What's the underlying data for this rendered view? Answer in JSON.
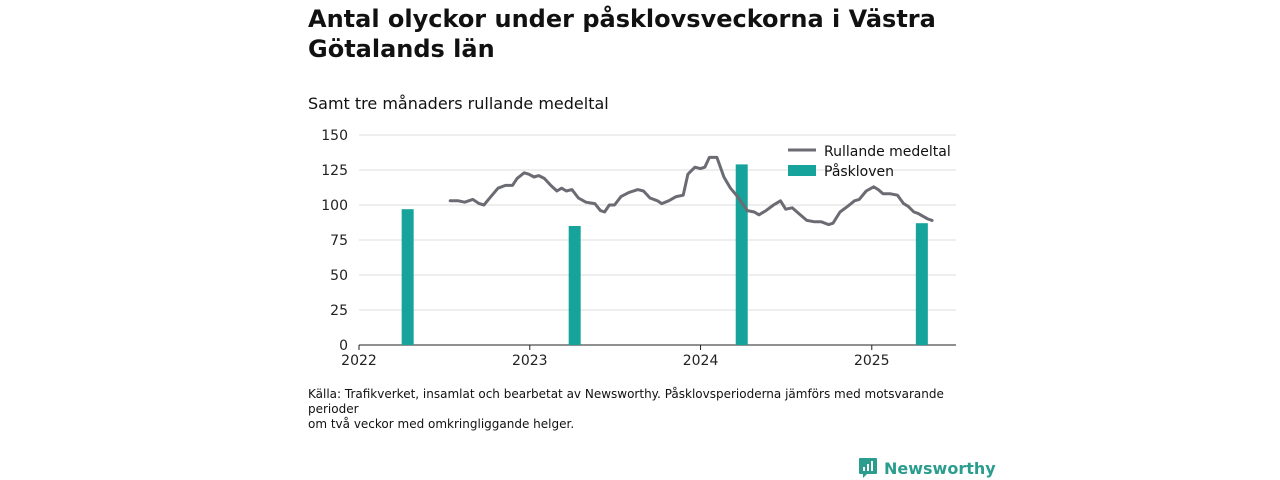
{
  "title": "Antal olyckor under påsklovsveckorna i Västra Götalands län",
  "subtitle": "Samt tre månaders rullande medeltal",
  "source_lines": [
    "Källa: Trafikverket, insamlat och bearbetat av Newsworthy. Påsklovsperioderna jämförs med motsvarande perioder",
    "om två veckor med omkringliggande helger."
  ],
  "brand": "Newsworthy",
  "colors": {
    "line": "#6b6b73",
    "bars": "#15a39b",
    "brand": "#2a9d8f",
    "grid": "#dddddd"
  },
  "chart_data": {
    "type": "bar+line",
    "x_ticks": [
      "2022",
      "2023",
      "2024",
      "2025"
    ],
    "xlim": [
      "2022-01-01",
      "2025-06-30"
    ],
    "ylim": [
      0,
      150
    ],
    "y_ticks": [
      0,
      25,
      50,
      75,
      100,
      125,
      150
    ],
    "grid": true,
    "legend_position": "top-right",
    "series": [
      {
        "name": "Påskloven",
        "type": "bar",
        "points": [
          {
            "x": "2022-04-15",
            "y": 97
          },
          {
            "x": "2023-04-07",
            "y": 85
          },
          {
            "x": "2024-03-29",
            "y": 129
          },
          {
            "x": "2025-04-18",
            "y": 87
          }
        ]
      },
      {
        "name": "Rullande medeltal",
        "type": "line",
        "points": [
          {
            "x": "2022-07-15",
            "y": 103
          },
          {
            "x": "2022-08-01",
            "y": 103
          },
          {
            "x": "2022-08-15",
            "y": 102
          },
          {
            "x": "2022-09-01",
            "y": 104
          },
          {
            "x": "2022-09-15",
            "y": 101
          },
          {
            "x": "2022-09-25",
            "y": 100
          },
          {
            "x": "2022-10-10",
            "y": 106
          },
          {
            "x": "2022-10-25",
            "y": 112
          },
          {
            "x": "2022-11-10",
            "y": 114
          },
          {
            "x": "2022-11-25",
            "y": 114
          },
          {
            "x": "2022-12-05",
            "y": 119
          },
          {
            "x": "2022-12-20",
            "y": 123
          },
          {
            "x": "2022-12-30",
            "y": 122
          },
          {
            "x": "2023-01-10",
            "y": 120
          },
          {
            "x": "2023-01-20",
            "y": 121
          },
          {
            "x": "2023-02-01",
            "y": 119
          },
          {
            "x": "2023-02-15",
            "y": 114
          },
          {
            "x": "2023-02-28",
            "y": 110
          },
          {
            "x": "2023-03-10",
            "y": 112
          },
          {
            "x": "2023-03-20",
            "y": 110
          },
          {
            "x": "2023-04-01",
            "y": 111
          },
          {
            "x": "2023-04-15",
            "y": 105
          },
          {
            "x": "2023-05-01",
            "y": 102
          },
          {
            "x": "2023-05-20",
            "y": 101
          },
          {
            "x": "2023-06-01",
            "y": 96
          },
          {
            "x": "2023-06-10",
            "y": 95
          },
          {
            "x": "2023-06-20",
            "y": 100
          },
          {
            "x": "2023-07-01",
            "y": 100
          },
          {
            "x": "2023-07-15",
            "y": 106
          },
          {
            "x": "2023-08-01",
            "y": 109
          },
          {
            "x": "2023-08-20",
            "y": 111
          },
          {
            "x": "2023-09-01",
            "y": 110
          },
          {
            "x": "2023-09-15",
            "y": 105
          },
          {
            "x": "2023-10-01",
            "y": 103
          },
          {
            "x": "2023-10-10",
            "y": 101
          },
          {
            "x": "2023-10-25",
            "y": 103
          },
          {
            "x": "2023-11-10",
            "y": 106
          },
          {
            "x": "2023-11-25",
            "y": 107
          },
          {
            "x": "2023-12-05",
            "y": 122
          },
          {
            "x": "2023-12-20",
            "y": 127
          },
          {
            "x": "2024-01-01",
            "y": 126
          },
          {
            "x": "2024-01-10",
            "y": 127
          },
          {
            "x": "2024-01-20",
            "y": 134
          },
          {
            "x": "2024-02-05",
            "y": 134
          },
          {
            "x": "2024-02-20",
            "y": 120
          },
          {
            "x": "2024-03-05",
            "y": 112
          },
          {
            "x": "2024-03-20",
            "y": 106
          },
          {
            "x": "2024-04-10",
            "y": 96
          },
          {
            "x": "2024-04-25",
            "y": 95
          },
          {
            "x": "2024-05-05",
            "y": 93
          },
          {
            "x": "2024-05-20",
            "y": 96
          },
          {
            "x": "2024-06-05",
            "y": 100
          },
          {
            "x": "2024-06-20",
            "y": 103
          },
          {
            "x": "2024-07-01",
            "y": 97
          },
          {
            "x": "2024-07-15",
            "y": 98
          },
          {
            "x": "2024-08-01",
            "y": 93
          },
          {
            "x": "2024-08-15",
            "y": 89
          },
          {
            "x": "2024-09-01",
            "y": 88
          },
          {
            "x": "2024-09-15",
            "y": 88
          },
          {
            "x": "2024-10-01",
            "y": 86
          },
          {
            "x": "2024-10-10",
            "y": 87
          },
          {
            "x": "2024-10-25",
            "y": 95
          },
          {
            "x": "2024-11-10",
            "y": 99
          },
          {
            "x": "2024-11-25",
            "y": 103
          },
          {
            "x": "2024-12-05",
            "y": 104
          },
          {
            "x": "2024-12-20",
            "y": 110
          },
          {
            "x": "2025-01-05",
            "y": 113
          },
          {
            "x": "2025-01-15",
            "y": 111
          },
          {
            "x": "2025-01-25",
            "y": 108
          },
          {
            "x": "2025-02-10",
            "y": 108
          },
          {
            "x": "2025-02-25",
            "y": 107
          },
          {
            "x": "2025-03-10",
            "y": 101
          },
          {
            "x": "2025-03-20",
            "y": 99
          },
          {
            "x": "2025-04-01",
            "y": 95
          },
          {
            "x": "2025-04-10",
            "y": 94
          },
          {
            "x": "2025-04-20",
            "y": 92
          },
          {
            "x": "2025-05-01",
            "y": 90
          },
          {
            "x": "2025-05-10",
            "y": 89
          }
        ]
      }
    ]
  }
}
